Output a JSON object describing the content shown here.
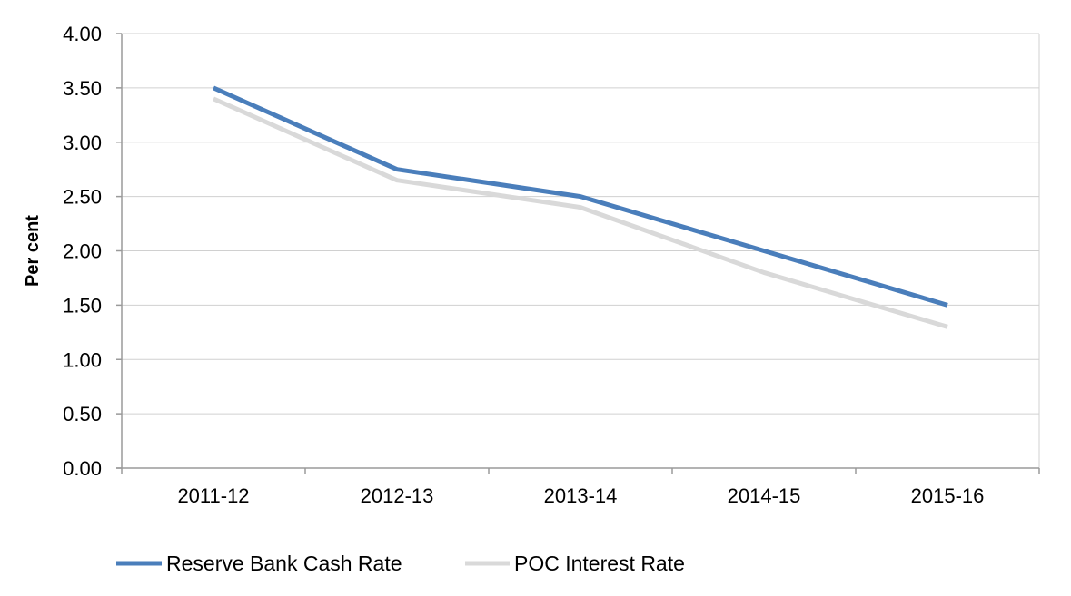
{
  "chart_data": {
    "type": "line",
    "title": "",
    "xlabel": "",
    "ylabel": "Per cent",
    "ylim": [
      0,
      4
    ],
    "y_tick_values": [
      0,
      0.5,
      1,
      1.5,
      2,
      2.5,
      3,
      3.5,
      4
    ],
    "y_tick_labels": [
      "0.00",
      "0.50",
      "1.00",
      "1.50",
      "2.00",
      "2.50",
      "3.00",
      "3.50",
      "4.00"
    ],
    "categories": [
      "2011-12",
      "2012-13",
      "2013-14",
      "2014-15",
      "2015-16"
    ],
    "grid": true,
    "legend_position": "bottom-left",
    "series": [
      {
        "name": "Reserve Bank Cash Rate",
        "color": "#4a7ebb",
        "values": [
          3.5,
          2.75,
          2.5,
          2.0,
          1.5
        ]
      },
      {
        "name": "POC Interest Rate",
        "color": "#d9d9d9",
        "values": [
          3.4,
          2.65,
          2.4,
          1.8,
          1.3
        ]
      }
    ]
  },
  "colors": {
    "gridline": "#d0d0d0",
    "axis": "#9a9a9a",
    "text": "#000000"
  }
}
